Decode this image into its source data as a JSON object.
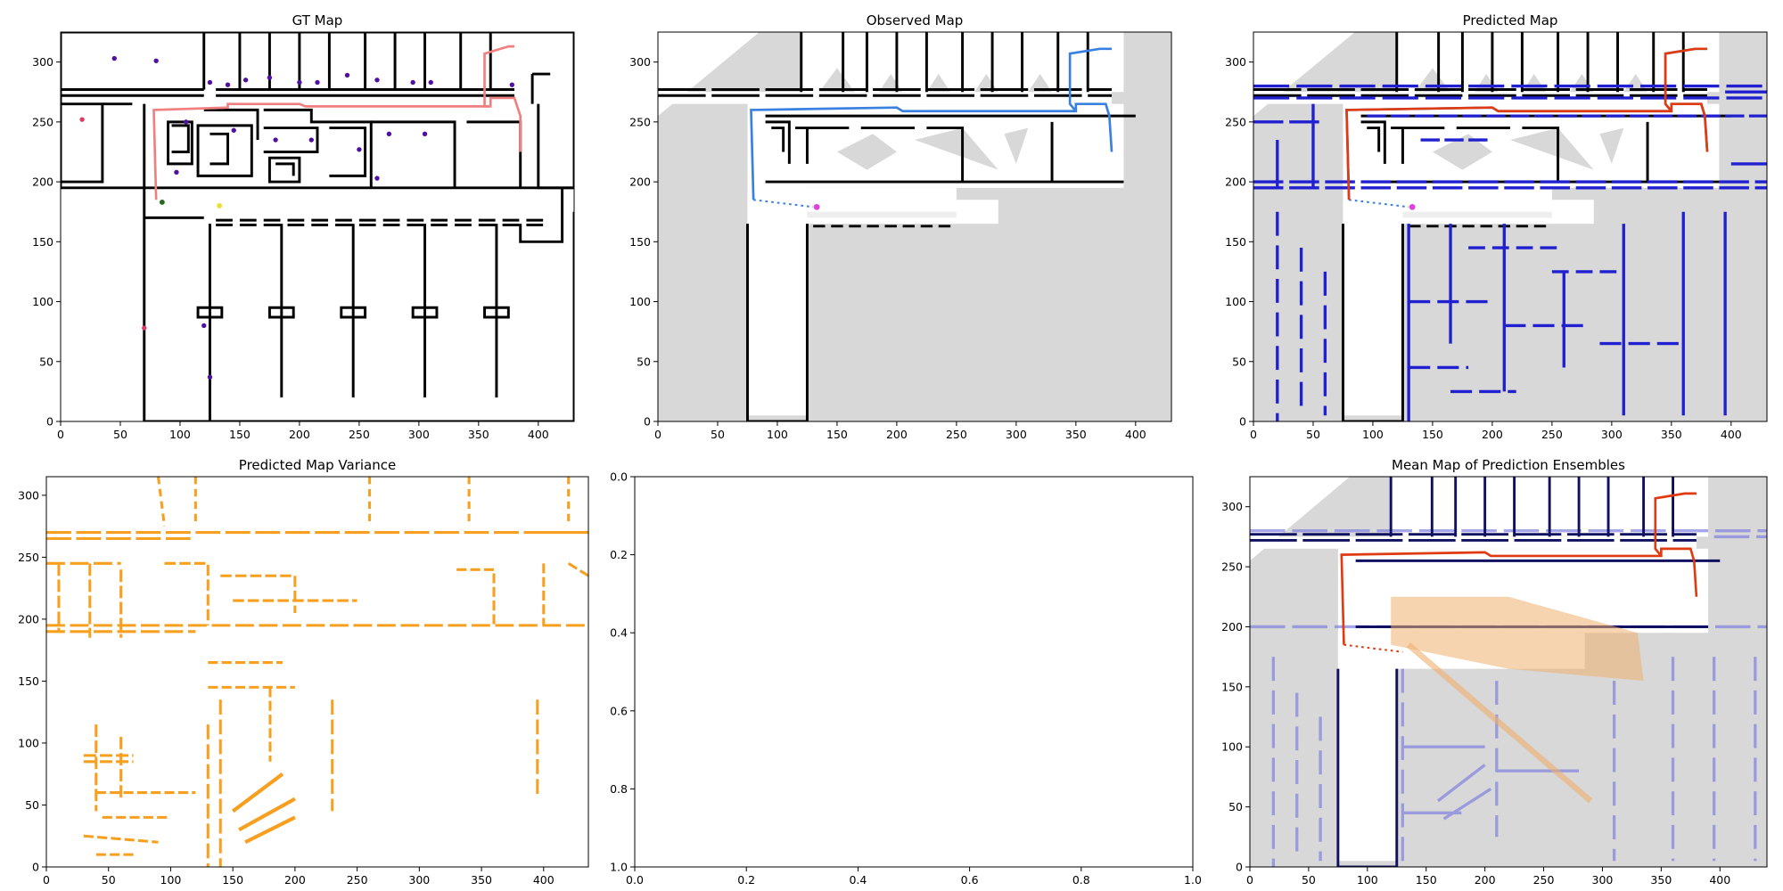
{
  "figure": {
    "background": "#ffffff",
    "colors": {
      "free": "#ffffff",
      "unknown": "#d8d8d8",
      "wall": "#000000",
      "gt_path": "#f08080",
      "observed_path": "#3a80e0",
      "predicted_path": "#e03a10",
      "predicted_wall": "#2020d0",
      "variance": "#f7a020",
      "markers": "#5010a0",
      "beam": "#f0c080"
    }
  },
  "chart_data": [
    {
      "type": "image",
      "title": "GT Map",
      "xlim": [
        0,
        430
      ],
      "ylim": [
        325,
        0
      ],
      "xticks": [
        0,
        50,
        100,
        150,
        200,
        250,
        300,
        350,
        400
      ],
      "yticks": [
        0,
        50,
        100,
        150,
        200,
        250,
        300
      ]
    },
    {
      "type": "image",
      "title": "Observed Map",
      "xlim": [
        0,
        430
      ],
      "ylim": [
        325,
        0
      ],
      "xticks": [
        0,
        50,
        100,
        150,
        200,
        250,
        300,
        350,
        400
      ],
      "yticks": [
        0,
        50,
        100,
        150,
        200,
        250,
        300
      ]
    },
    {
      "type": "image",
      "title": "Predicted Map",
      "xlim": [
        0,
        430
      ],
      "ylim": [
        325,
        0
      ],
      "xticks": [
        0,
        50,
        100,
        150,
        200,
        250,
        300,
        350,
        400
      ],
      "yticks": [
        0,
        50,
        100,
        150,
        200,
        250,
        300
      ]
    },
    {
      "type": "image",
      "title": "Predicted Map Variance",
      "xlim": [
        0,
        436
      ],
      "ylim": [
        315,
        0
      ],
      "xticks": [
        0,
        50,
        100,
        150,
        200,
        250,
        300,
        350,
        400
      ],
      "yticks": [
        0,
        50,
        100,
        150,
        200,
        250,
        300
      ]
    },
    {
      "type": "empty",
      "title": "",
      "xlim": [
        0,
        1
      ],
      "ylim": [
        0,
        1
      ],
      "xticks": [
        "0.0",
        "0.2",
        "0.4",
        "0.6",
        "0.8",
        "1.0"
      ],
      "yticks": [
        "0.0",
        "0.2",
        "0.4",
        "0.6",
        "0.8",
        "1.0"
      ]
    },
    {
      "type": "image",
      "title": "Mean Map of Prediction Ensembles",
      "xlim": [
        0,
        440
      ],
      "ylim": [
        325,
        0
      ],
      "xticks": [
        0,
        50,
        100,
        150,
        200,
        250,
        300,
        350,
        400
      ],
      "yticks": [
        0,
        50,
        100,
        150,
        200,
        250,
        300
      ]
    }
  ]
}
